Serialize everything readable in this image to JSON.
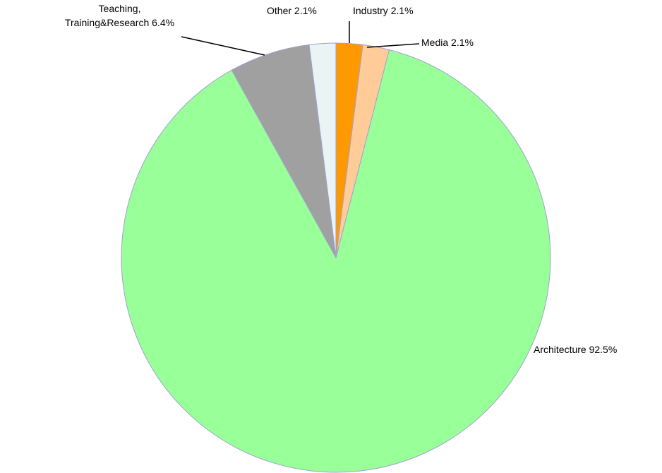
{
  "chart_data": {
    "type": "pie",
    "categories": [
      "Industry",
      "Media",
      "Architecture",
      "Teaching, Training&Research",
      "Other"
    ],
    "values": [
      2.1,
      2.1,
      92.5,
      6.4,
      2.1
    ],
    "value_labels": [
      "2.1%",
      "2.1%",
      "92.5%",
      "6.4%",
      "2.1%"
    ],
    "colors": [
      "#ff9900",
      "#ffcc99",
      "#99ff99",
      "#a0a0a0",
      "#eaf4f4"
    ]
  }
}
